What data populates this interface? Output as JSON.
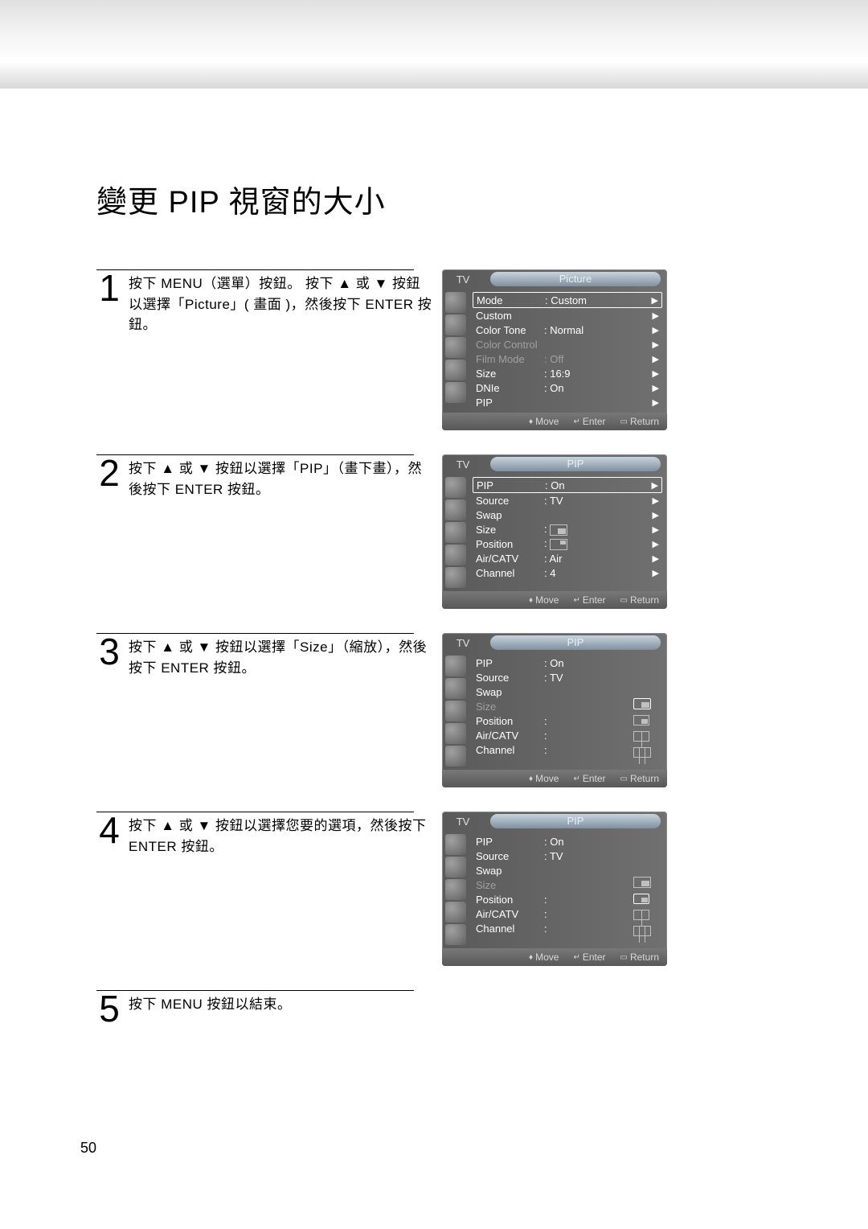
{
  "page_number": "50",
  "title": "變更 PIP 視窗的大小",
  "steps": [
    {
      "num": "1",
      "text": "按下 MENU（選單）按鈕。 按下 ▲ 或 ▼ 按鈕以選擇「Picture」( 畫面 )，然後按下 ENTER 按鈕。"
    },
    {
      "num": "2",
      "text": "按下 ▲ 或 ▼ 按鈕以選擇「PIP」（畫下畫），然後按下 ENTER 按鈕。"
    },
    {
      "num": "3",
      "text": "按下 ▲ 或 ▼ 按鈕以選擇「Size」（縮放），然後按下 ENTER 按鈕。"
    },
    {
      "num": "4",
      "text": "按下 ▲ 或 ▼ 按鈕以選擇您要的選項，然後按下 ENTER 按鈕。"
    },
    {
      "num": "5",
      "text": "按下 MENU 按鈕以結束。"
    }
  ],
  "osd_common": {
    "tv_label": "TV",
    "footer_move": "Move",
    "footer_enter": "Enter",
    "footer_return": "Return"
  },
  "osd1": {
    "title": "Picture",
    "items": [
      {
        "label": "Mode",
        "value": ": Custom",
        "selected": true,
        "arrow": true
      },
      {
        "label": "Custom",
        "value": "",
        "arrow": true
      },
      {
        "label": "Color Tone",
        "value": ": Normal",
        "arrow": true
      },
      {
        "label": "Color Control",
        "value": "",
        "dim": true,
        "arrow": true
      },
      {
        "label": "Film Mode",
        "value": ": Off",
        "dim": true,
        "arrow": true
      },
      {
        "label": "Size",
        "value": ": 16:9",
        "arrow": true
      },
      {
        "label": "DNIe",
        "value": ": On",
        "arrow": true
      },
      {
        "label": "PIP",
        "value": "",
        "arrow": true
      }
    ]
  },
  "osd2": {
    "title": "PIP",
    "items": [
      {
        "label": "PIP",
        "value": ": On",
        "selected": true,
        "arrow": true
      },
      {
        "label": "Source",
        "value": ": TV",
        "arrow": true
      },
      {
        "label": "Swap",
        "value": "",
        "arrow": true
      },
      {
        "label": "Size",
        "value_icon": "pip-large",
        "arrow": true
      },
      {
        "label": "Position",
        "value_icon": "pip-pos",
        "arrow": true
      },
      {
        "label": "Air/CATV",
        "value": ": Air",
        "arrow": true
      },
      {
        "label": "Channel",
        "value": ": 4",
        "arrow": true
      }
    ]
  },
  "osd3": {
    "title": "PIP",
    "items": [
      {
        "label": "PIP",
        "value": ": On"
      },
      {
        "label": "Source",
        "value": ": TV"
      },
      {
        "label": "Swap",
        "value": ""
      },
      {
        "label": "Size",
        "value": "",
        "dim": true
      },
      {
        "label": "Position",
        "value": ":"
      },
      {
        "label": "Air/CATV",
        "value": ":"
      },
      {
        "label": "Channel",
        "value": ":"
      }
    ],
    "size_options": [
      "pip-large-sel",
      "pip-medium",
      "pip-split2",
      "pip-split3"
    ]
  },
  "osd4": {
    "title": "PIP",
    "items": [
      {
        "label": "PIP",
        "value": ": On"
      },
      {
        "label": "Source",
        "value": ": TV"
      },
      {
        "label": "Swap",
        "value": ""
      },
      {
        "label": "Size",
        "value": "",
        "dim": true
      },
      {
        "label": "Position",
        "value": ":"
      },
      {
        "label": "Air/CATV",
        "value": ":"
      },
      {
        "label": "Channel",
        "value": ":"
      }
    ],
    "size_options": [
      "pip-large",
      "pip-medium-sel",
      "pip-split2",
      "pip-split3"
    ]
  },
  "colors": {
    "osd_bg_start": "#5a5a5a",
    "osd_bg_end": "#707070",
    "osd_text": "#ffffff",
    "osd_dim": "#a0a0a0",
    "title_bar_top": "#c8d4dc",
    "title_bar_bottom": "#8090a0"
  }
}
